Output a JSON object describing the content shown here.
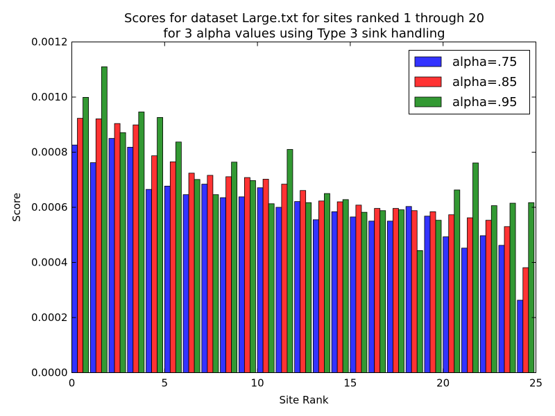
{
  "chart_data": {
    "type": "bar",
    "title_line1": "Scores for dataset Large.txt for sites ranked 1 through 20",
    "title_line2": "for 3 alpha values using Type 3 sink handling",
    "xlabel": "Site Rank",
    "ylabel": "Score",
    "xlim": [
      0,
      25
    ],
    "ylim": [
      0,
      0.0012
    ],
    "xticks": [
      "0",
      "5",
      "10",
      "15",
      "20",
      "25"
    ],
    "yticks": [
      "0.0000",
      "0.0002",
      "0.0004",
      "0.0006",
      "0.0008",
      "0.0010",
      "0.0012"
    ],
    "grid": false,
    "legend_position": "top-right",
    "x": [
      0,
      1,
      2,
      3,
      4,
      5,
      6,
      7,
      8,
      9,
      10,
      11,
      12,
      13,
      14,
      15,
      16,
      17,
      18,
      19,
      20,
      21,
      22,
      23,
      24
    ],
    "series": [
      {
        "name": "alpha=.75",
        "color": "#3333ff",
        "values": [
          0.000826,
          0.000762,
          0.00085,
          0.000818,
          0.000665,
          0.000677,
          0.000646,
          0.000684,
          0.000635,
          0.000638,
          0.000671,
          0.0006,
          0.000621,
          0.000555,
          0.000584,
          0.000565,
          0.00055,
          0.00055,
          0.000603,
          0.000568,
          0.000493,
          0.000452,
          0.000497,
          0.000462,
          0.000263
        ]
      },
      {
        "name": "alpha=.85",
        "color": "#ff3333",
        "values": [
          0.000923,
          0.000921,
          0.000904,
          0.000899,
          0.000787,
          0.000765,
          0.000724,
          0.000716,
          0.000711,
          0.000708,
          0.000702,
          0.000684,
          0.000661,
          0.000623,
          0.00062,
          0.000608,
          0.000596,
          0.000596,
          0.000588,
          0.000584,
          0.000573,
          0.000562,
          0.000553,
          0.00053,
          0.000381
        ]
      },
      {
        "name": "alpha=.95",
        "color": "#339933",
        "values": [
          0.000999,
          0.00111,
          0.000871,
          0.000946,
          0.000926,
          0.000837,
          0.000701,
          0.000646,
          0.000764,
          0.000697,
          0.000613,
          0.00081,
          0.000617,
          0.00065,
          0.000628,
          0.000582,
          0.000588,
          0.000591,
          0.000443,
          0.000553,
          0.000663,
          0.000761,
          0.000606,
          0.000615,
          0.000617
        ]
      }
    ]
  }
}
